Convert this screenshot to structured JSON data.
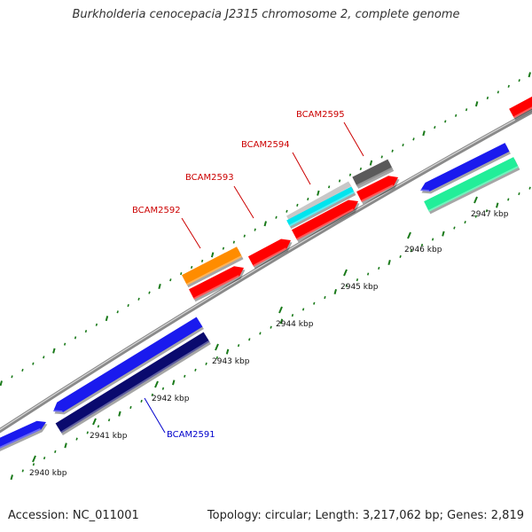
{
  "title": "Burkholderia cenocepacia J2315 chromosome 2, complete genome",
  "footer": {
    "accession": "Accession: NC_011001",
    "summary": "Topology: circular; Length: 3,217,062 bp; Genes: 2,819"
  },
  "scale_labels": [
    "2940 kbp",
    "2941 kbp",
    "2942 kbp",
    "2943 kbp",
    "2944 kbp",
    "2945 kbp",
    "2946 kbp",
    "2947 kbp"
  ],
  "colors": {
    "backbone": "#8a8a8a",
    "tick": "#1a7a1a",
    "red": "#ff0000",
    "blue": "#1a1aee",
    "navy": "#0a0a6e",
    "orange": "#ff8c00",
    "cyan": "#00e5ee",
    "light_gray": "#c8c8c8",
    "dark_gray": "#5a5a5a",
    "mint": "#22ee99",
    "label_red": "#cc0000",
    "label_blue": "#0000cc"
  },
  "gene_labels": [
    {
      "text": "BCAM2591",
      "color": "label_blue"
    },
    {
      "text": "BCAM2592",
      "color": "label_red"
    },
    {
      "text": "BCAM2593",
      "color": "label_red"
    },
    {
      "text": "BCAM2594",
      "color": "label_red"
    },
    {
      "text": "BCAM2595",
      "color": "label_red"
    }
  ]
}
